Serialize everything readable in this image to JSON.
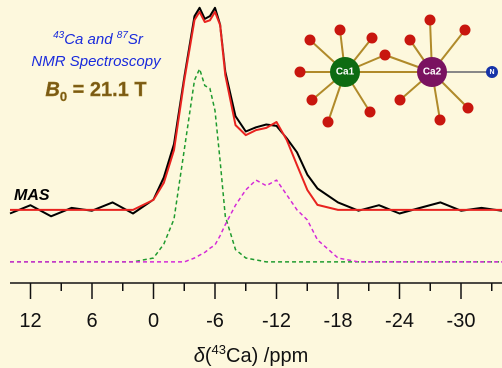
{
  "chart_data": {
    "type": "line",
    "annotations": {
      "line1": [
        "43",
        "Ca and ",
        "87",
        "Sr"
      ],
      "line2": "NMR Spectroscopy",
      "field": [
        "B",
        "0",
        " = 21.1 T"
      ],
      "mas": "MAS",
      "atoms": [
        "Ca1",
        "Ca2",
        "N"
      ]
    },
    "x_label": [
      "δ",
      "(",
      "43",
      "Ca) /ppm"
    ],
    "x": [
      14,
      12,
      10,
      8,
      6,
      4,
      2,
      0,
      -1,
      -2,
      -3,
      -4,
      -4.5,
      -5,
      -5.5,
      -6,
      -6.5,
      -7,
      -8,
      -9,
      -10,
      -11,
      -12,
      -13,
      -14,
      -15,
      -16,
      -18,
      -20,
      -22,
      -24,
      -26,
      -28,
      -30,
      -32,
      -34
    ],
    "series": [
      {
        "color": "#000000",
        "dashed": false,
        "values": [
          0.25,
          0.28,
          0.24,
          0.27,
          0.26,
          0.29,
          0.25,
          0.3,
          0.38,
          0.5,
          0.74,
          0.96,
          0.99,
          0.95,
          0.96,
          0.99,
          0.93,
          0.76,
          0.6,
          0.545,
          0.56,
          0.57,
          0.565,
          0.52,
          0.47,
          0.39,
          0.34,
          0.29,
          0.26,
          0.28,
          0.25,
          0.27,
          0.29,
          0.26,
          0.27,
          0.26
        ]
      },
      {
        "color": "#e8231f",
        "dashed": false,
        "values": [
          0.263,
          0.263,
          0.263,
          0.263,
          0.263,
          0.263,
          0.263,
          0.299,
          0.36,
          0.478,
          0.73,
          0.946,
          0.975,
          0.939,
          0.945,
          0.975,
          0.928,
          0.748,
          0.568,
          0.532,
          0.55,
          0.558,
          0.579,
          0.514,
          0.424,
          0.335,
          0.281,
          0.263,
          0.263,
          0.263,
          0.263,
          0.263,
          0.263,
          0.263,
          0.263,
          0.263
        ]
      },
      {
        "color": "#1e9a2e",
        "dashed": true,
        "values": [
          0.076,
          0.076,
          0.076,
          0.076,
          0.076,
          0.076,
          0.076,
          0.09,
          0.14,
          0.23,
          0.48,
          0.73,
          0.77,
          0.71,
          0.7,
          0.62,
          0.44,
          0.24,
          0.12,
          0.09,
          0.083,
          0.076,
          0.076,
          0.076,
          0.076,
          0.076,
          0.076,
          0.076,
          0.076,
          0.076,
          0.076,
          0.076,
          0.076,
          0.076,
          0.076,
          0.076
        ]
      },
      {
        "color": "#d42ad8",
        "dashed": true,
        "values": [
          0.076,
          0.076,
          0.076,
          0.076,
          0.076,
          0.076,
          0.076,
          0.076,
          0.076,
          0.076,
          0.076,
          0.09,
          0.1,
          0.11,
          0.125,
          0.137,
          0.17,
          0.21,
          0.28,
          0.335,
          0.37,
          0.35,
          0.37,
          0.317,
          0.263,
          0.227,
          0.155,
          0.09,
          0.076,
          0.076,
          0.076,
          0.076,
          0.076,
          0.076,
          0.076,
          0.076
        ]
      }
    ],
    "xlim": [
      14,
      -34
    ],
    "ylim": [
      0,
      1
    ],
    "xticks": [
      12,
      6,
      0,
      -6,
      -12,
      -18,
      -24,
      -30
    ],
    "xminorticks": [
      9,
      3,
      -3,
      -9,
      -15,
      -21,
      -27,
      -33
    ]
  }
}
